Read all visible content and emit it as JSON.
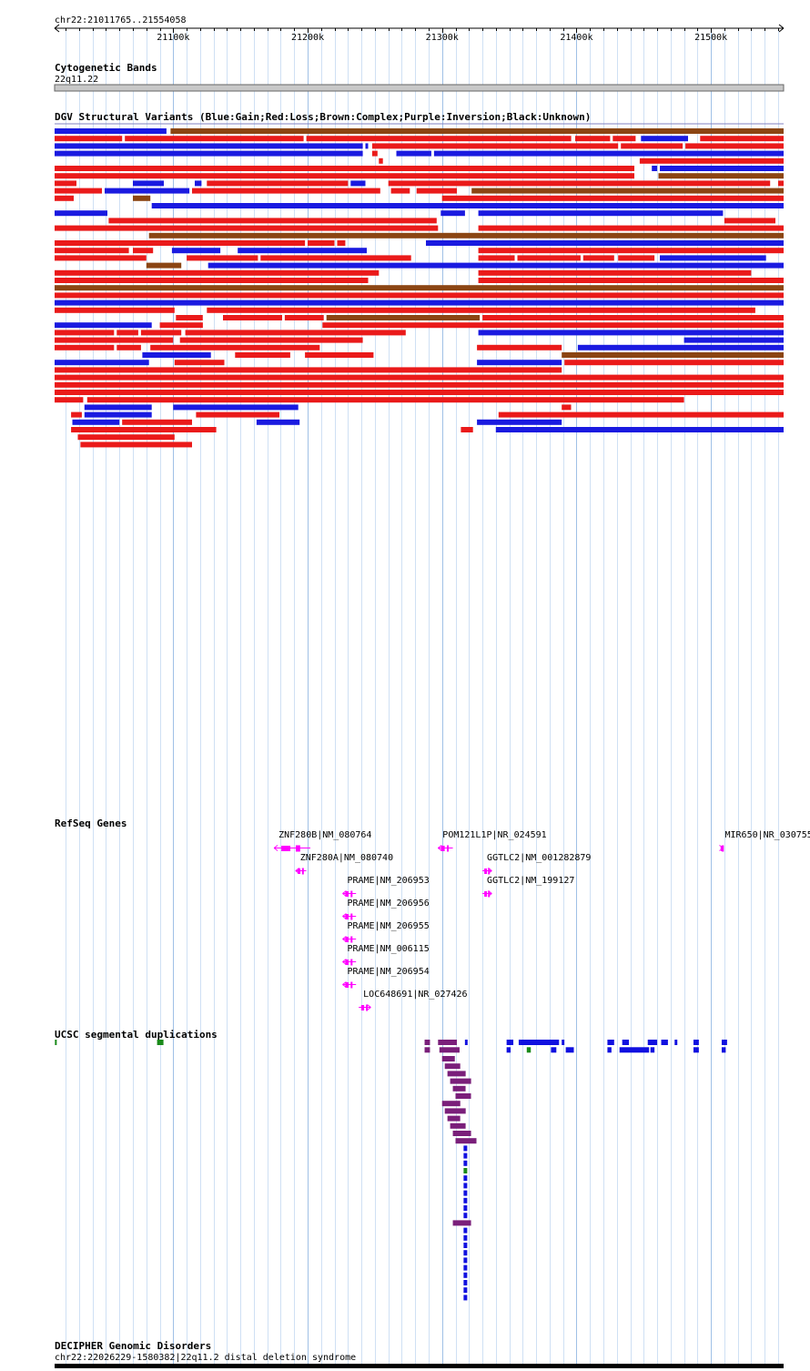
{
  "region": "chr22:21011765..21554058",
  "ruler": {
    "ticks": [
      {
        "pos": 21100000,
        "label": "21100k"
      },
      {
        "pos": 21200000,
        "label": "21200k"
      },
      {
        "pos": 21300000,
        "label": "21300k"
      },
      {
        "pos": 21400000,
        "label": "21400k"
      },
      {
        "pos": 21500000,
        "label": "21500k"
      }
    ]
  },
  "tracks": {
    "cytoband": {
      "title": "Cytogenetic Bands",
      "band": "22q11.22"
    },
    "dgv": {
      "title": "DGV Structural Variants (Blue:Gain;Red:Loss;Brown:Complex;Purple:Inversion;Black:Unknown)"
    },
    "refseq": {
      "title": "RefSeq Genes"
    },
    "segdup": {
      "title": "UCSC segmental duplications"
    },
    "decipher": {
      "title": "DECIPHER Genomic Disorders",
      "item": "chr22:22026229-1580382|22q11.2 distal deletion syndrome"
    }
  },
  "legend_colors": {
    "gain": "#1a1ae0",
    "loss": "#ea1a1a",
    "complex": "#8b4513",
    "inversion": "#800080",
    "unknown": "#000000",
    "gene": "#ff00ff",
    "segdup_purple": "#7a1f7a",
    "segdup_blue": "#1010e0",
    "segdup_green": "#1a8a1a"
  },
  "genes": [
    {
      "label": "ZNF280B|NM_080764",
      "start": 21175000,
      "end": 21202000,
      "strand": "-"
    },
    {
      "label": "ZNF280A|NM_080740",
      "start": 21191000,
      "end": 21199000,
      "strand": "-"
    },
    {
      "label": "PRAME|NM_206953",
      "start": 21226000,
      "end": 21236000,
      "strand": "-"
    },
    {
      "label": "PRAME|NM_206956",
      "start": 21226000,
      "end": 21236000,
      "strand": "-"
    },
    {
      "label": "PRAME|NM_206955",
      "start": 21226000,
      "end": 21236000,
      "strand": "-"
    },
    {
      "label": "PRAME|NM_006115",
      "start": 21226000,
      "end": 21236000,
      "strand": "-"
    },
    {
      "label": "PRAME|NM_206954",
      "start": 21226000,
      "end": 21236000,
      "strand": "-"
    },
    {
      "label": "LOC648691|NR_027426",
      "start": 21238000,
      "end": 21247000,
      "strand": "+"
    },
    {
      "label": "POM121L1P|NR_024591",
      "start": 21297000,
      "end": 21308000,
      "strand": "-"
    },
    {
      "label": "GGTLC2|NM_001282879",
      "start": 21330000,
      "end": 21337000,
      "strand": "+"
    },
    {
      "label": "GGTLC2|NM_199127",
      "start": 21330000,
      "end": 21337000,
      "strand": "+"
    },
    {
      "label": "MIR650|NR_030755",
      "start": 21507000,
      "end": 21509000,
      "strand": "+"
    }
  ],
  "dgv_variants": [
    [
      "gain",
      21011765,
      21095000
    ],
    [
      "complex",
      21098000,
      21554058
    ],
    [
      "loss",
      21011765,
      21062000
    ],
    [
      "loss",
      21064000,
      21197000
    ],
    [
      "loss",
      21199000,
      21396000
    ],
    [
      "loss",
      21399000,
      21425000
    ],
    [
      "loss",
      21427000,
      21444000
    ],
    [
      "gain",
      21448000,
      21483000
    ],
    [
      "loss",
      21492000,
      21554058
    ],
    [
      "gain",
      21011765,
      21241000
    ],
    [
      "gain",
      21243000,
      21245000
    ],
    [
      "loss",
      21248000,
      21431000
    ],
    [
      "loss",
      21433000,
      21479000
    ],
    [
      "loss",
      21481000,
      21554058
    ],
    [
      "gain",
      21011765,
      21241000
    ],
    [
      "loss",
      21248000,
      21252000
    ],
    [
      "loss",
      21253000,
      21256000
    ],
    [
      "gain",
      21266000,
      21292000
    ],
    [
      "gain",
      21294000,
      21554058
    ],
    [
      "loss",
      21011765,
      21443000
    ],
    [
      "loss",
      21447000,
      21554058
    ],
    [
      "loss",
      21011765,
      21443000
    ],
    [
      "gain",
      21456000,
      21460000
    ],
    [
      "gain",
      21462000,
      21554058
    ],
    [
      "loss",
      21011765,
      21028000
    ],
    [
      "gain",
      21070000,
      21093000
    ],
    [
      "gain",
      21116000,
      21121000
    ],
    [
      "loss",
      21125000,
      21230000
    ],
    [
      "gain",
      21232000,
      21243000
    ],
    [
      "loss",
      21260000,
      21544000
    ],
    [
      "loss",
      21011765,
      21047000
    ],
    [
      "gain",
      21049000,
      21112000
    ],
    [
      "loss",
      21114000,
      21254000
    ],
    [
      "loss",
      21262000,
      21276000
    ],
    [
      "loss",
      21281000,
      21311000
    ],
    [
      "complex",
      21461000,
      21554058
    ],
    [
      "loss",
      21011765,
      21026000
    ],
    [
      "complex",
      21070000,
      21083000
    ],
    [
      "gain",
      21084000,
      21554058
    ],
    [
      "gain",
      21011765,
      21051000
    ],
    [
      "loss",
      21052000,
      21296000
    ],
    [
      "loss",
      21300000,
      21554058
    ],
    [
      "loss",
      21011765,
      21297000
    ],
    [
      "gain",
      21299000,
      21317000
    ],
    [
      "complex",
      21322000,
      21554058
    ],
    [
      "complex",
      21082000,
      21554058
    ],
    [
      "loss",
      21011765,
      21198000
    ],
    [
      "loss",
      21200000,
      21220000
    ],
    [
      "loss",
      21222000,
      21228000
    ],
    [
      "gain",
      21288000,
      21554058
    ],
    [
      "loss",
      21011765,
      21067000
    ],
    [
      "loss",
      21070000,
      21085000
    ],
    [
      "gain",
      21099000,
      21135000
    ],
    [
      "gain",
      21148000,
      21244000
    ],
    [
      "gain",
      21327000,
      21509000
    ],
    [
      "loss",
      21510000,
      21548000
    ],
    [
      "loss",
      21011765,
      21080000
    ],
    [
      "complex",
      21080000,
      21106000
    ],
    [
      "loss",
      21110000,
      21163000
    ],
    [
      "loss",
      21165000,
      21277000
    ],
    [
      "loss",
      21327000,
      21554058
    ],
    [
      "loss",
      21011765,
      21253000
    ],
    [
      "loss",
      21327000,
      21554058
    ],
    [
      "loss",
      21011765,
      21245000
    ],
    [
      "loss",
      21327000,
      21354000
    ],
    [
      "loss",
      21356000,
      21403000
    ],
    [
      "loss",
      21405000,
      21428000
    ],
    [
      "loss",
      21431000,
      21458000
    ],
    [
      "gain",
      21462000,
      21541000
    ],
    [
      "complex",
      21011765,
      21554058
    ],
    [
      "loss",
      21011765,
      21554058
    ],
    [
      "gain",
      21011765,
      21554058
    ],
    [
      "loss",
      21011765,
      21101000
    ],
    [
      "loss",
      21102000,
      21122000
    ],
    [
      "gain",
      21126000,
      21554058
    ],
    [
      "gain",
      21011765,
      21084000
    ],
    [
      "loss",
      21090000,
      21122000
    ],
    [
      "loss",
      21125000,
      21533000
    ],
    [
      "loss",
      21011765,
      21056000
    ],
    [
      "loss",
      21058000,
      21074000
    ],
    [
      "loss",
      21076000,
      21106000
    ],
    [
      "loss",
      21109000,
      21273000
    ],
    [
      "loss",
      21327000,
      21530000
    ],
    [
      "loss",
      21011765,
      21100000
    ],
    [
      "loss",
      21105000,
      21241000
    ],
    [
      "loss",
      21327000,
      21554058
    ],
    [
      "loss",
      21011765,
      21056000
    ],
    [
      "loss",
      21058000,
      21076000
    ],
    [
      "gain",
      21077000,
      21128000
    ],
    [
      "loss",
      21137000,
      21181000
    ],
    [
      "loss",
      21183000,
      21212000
    ],
    [
      "complex",
      21214000,
      21328000
    ],
    [
      "loss",
      21330000,
      21554058
    ],
    [
      "gain",
      21011765,
      21082000
    ],
    [
      "loss",
      21083000,
      21209000
    ],
    [
      "loss",
      21211000,
      21554058
    ],
    [
      "loss",
      21011765,
      21389000
    ],
    [
      "loss",
      21550000,
      21554058
    ],
    [
      "loss",
      21011765,
      21554058
    ],
    [
      "loss",
      21011765,
      21554058
    ],
    [
      "loss",
      21011765,
      21554058
    ],
    [
      "loss",
      21011765,
      21033000
    ],
    [
      "gain",
      21034000,
      21084000
    ],
    [
      "loss",
      21101000,
      21138000
    ],
    [
      "loss",
      21146000,
      21187000
    ],
    [
      "loss",
      21198000,
      21249000
    ],
    [
      "gain",
      21327000,
      21554058
    ],
    [
      "loss",
      21036000,
      21480000
    ],
    [
      "gain",
      21480000,
      21554058
    ],
    [
      "loss",
      21024000,
      21032000
    ],
    [
      "gain",
      21034000,
      21084000
    ],
    [
      "gain",
      21100000,
      21193000
    ],
    [
      "loss",
      21326000,
      21389000
    ],
    [
      "complex",
      21389000,
      21554058
    ],
    [
      "gain",
      21025000,
      21060000
    ],
    [
      "loss",
      21062000,
      21114000
    ],
    [
      "loss",
      21117000,
      21179000
    ],
    [
      "gain",
      21326000,
      21389000
    ],
    [
      "loss",
      21389000,
      21396000
    ],
    [
      "gain",
      21401000,
      21554058
    ],
    [
      "loss",
      21024000,
      21132000
    ],
    [
      "loss",
      21342000,
      21554058
    ],
    [
      "loss",
      21029000,
      21101000
    ],
    [
      "gain",
      21162000,
      21194000
    ],
    [
      "gain",
      21326000,
      21389000
    ],
    [
      "loss",
      21391000,
      21554058
    ],
    [
      "loss",
      21031000,
      21114000
    ],
    [
      "loss",
      21314000,
      21323000
    ],
    [
      "gain",
      21340000,
      21554058
    ]
  ],
  "segdups": [
    [
      "purple",
      21287000,
      21291000
    ],
    [
      "purple",
      21297000,
      21311000
    ],
    [
      "blue",
      21317000,
      21319000
    ],
    [
      "blue",
      21348000,
      21353000
    ],
    [
      "blue",
      21357000,
      21387000
    ],
    [
      "blue",
      21389000,
      21391000
    ],
    [
      "blue",
      21423000,
      21428000
    ],
    [
      "blue",
      21434000,
      21439000
    ],
    [
      "blue",
      21453000,
      21460000
    ],
    [
      "blue",
      21463000,
      21468000
    ],
    [
      "blue",
      21473000,
      21475000
    ],
    [
      "blue",
      21487000,
      21491000
    ],
    [
      "blue",
      21508000,
      21512000
    ],
    [
      "purple",
      21287000,
      21291000
    ],
    [
      "purple",
      21298000,
      21313000
    ],
    [
      "blue",
      21348000,
      21351000
    ],
    [
      "green",
      21363000,
      21366000
    ],
    [
      "blue",
      21381000,
      21385000
    ],
    [
      "blue",
      21392000,
      21398000
    ],
    [
      "blue",
      21423000,
      21426000
    ],
    [
      "blue",
      21432000,
      21454000
    ],
    [
      "blue",
      21455000,
      21458000
    ],
    [
      "blue",
      21487000,
      21491000
    ],
    [
      "blue",
      21508000,
      21511000
    ]
  ]
}
